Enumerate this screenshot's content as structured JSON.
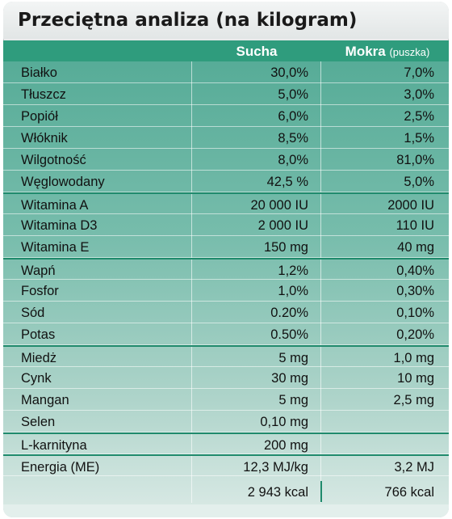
{
  "title": "Przeciętna analiza (na kilogram)",
  "header": {
    "dry": "Sucha",
    "wet": "Mokra",
    "wet_sub": "(puszka)"
  },
  "rows": [
    {
      "name": "Białko",
      "dry": "30,0%",
      "wet": "7,0%"
    },
    {
      "name": "Tłuszcz",
      "dry": "5,0%",
      "wet": "3,0%"
    },
    {
      "name": "Popiół",
      "dry": "6,0%",
      "wet": "2,5%"
    },
    {
      "name": "Włóknik",
      "dry": "8,5%",
      "wet": "1,5%"
    },
    {
      "name": "Wilgotność",
      "dry": "8,0%",
      "wet": "81,0%"
    },
    {
      "name": "Węglowodany",
      "dry": "42,5 %",
      "wet": "5,0%"
    },
    {
      "name": "Witamina A",
      "dry": "20 000 IU",
      "wet": "2000 IU"
    },
    {
      "name": "Witamina D3",
      "dry": "2 000 IU",
      "wet": "110 IU"
    },
    {
      "name": "Witamina E",
      "dry": "150 mg",
      "wet": "40 mg"
    },
    {
      "name": "Wapń",
      "dry": "1,2%",
      "wet": "0,40%"
    },
    {
      "name": "Fosfor",
      "dry": "1,0%",
      "wet": "0,30%"
    },
    {
      "name": "Sód",
      "dry": "0.20%",
      "wet": "0,10%"
    },
    {
      "name": "Potas",
      "dry": "0.50%",
      "wet": "0,20%"
    },
    {
      "name": "Miedż",
      "dry": "5 mg",
      "wet": "1,0 mg"
    },
    {
      "name": "Cynk",
      "dry": "30 mg",
      "wet": "10 mg"
    },
    {
      "name": "Mangan",
      "dry": "5 mg",
      "wet": "2,5 mg"
    },
    {
      "name": "Selen",
      "dry": "0,10 mg",
      "wet": ""
    },
    {
      "name": "L-karnityna",
      "dry": "200 mg",
      "wet": ""
    },
    {
      "name": "Energia (ME)",
      "dry": "12,3 MJ/kg",
      "wet": "3,2 MJ"
    },
    {
      "name": "",
      "dry": "2 943 kcal",
      "wet": "766 kcal"
    }
  ]
}
